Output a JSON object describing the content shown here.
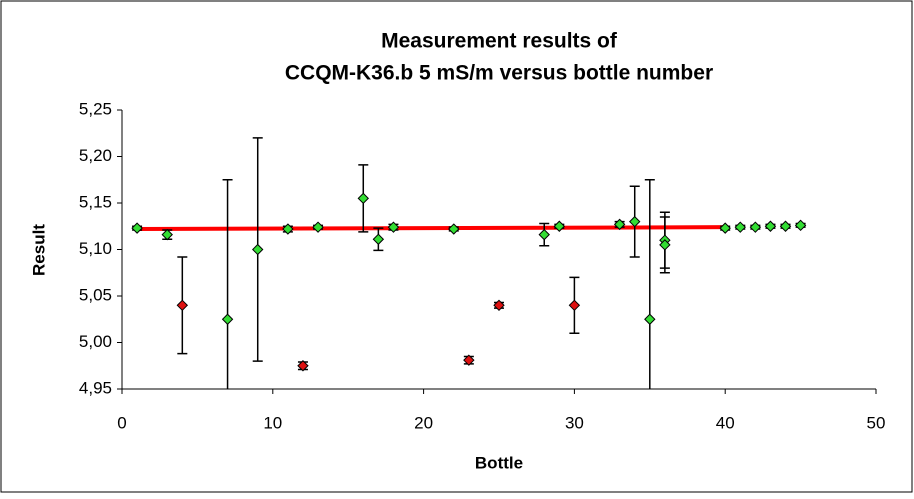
{
  "chart_data": {
    "type": "scatter",
    "title": [
      "Measurement results of",
      "CCQM-K36.b 5 mS/m versus bottle number"
    ],
    "xlabel": "Bottle",
    "ylabel": "Result",
    "xlim": [
      0,
      50
    ],
    "xticks": [
      0,
      10,
      20,
      30,
      40,
      50
    ],
    "ylim": [
      4.95,
      5.25
    ],
    "yticks": [
      {
        "value": 4.95,
        "label": "4,95"
      },
      {
        "value": 5.0,
        "label": "5,00"
      },
      {
        "value": 5.05,
        "label": "5,05"
      },
      {
        "value": 5.1,
        "label": "5,10"
      },
      {
        "value": 5.15,
        "label": "5,15"
      },
      {
        "value": 5.2,
        "label": "5,20"
      },
      {
        "value": 5.25,
        "label": "5,25"
      }
    ],
    "series": [
      {
        "kind": "line",
        "color": "#ff0000",
        "x": [
          1,
          40
        ],
        "values": [
          5.122,
          5.124
        ]
      },
      {
        "kind": "points",
        "color": "#33dd33",
        "x": [
          1,
          3,
          7,
          9,
          11,
          13,
          16,
          17,
          18,
          22,
          28,
          29,
          33,
          34,
          35,
          36,
          36,
          40,
          41,
          42,
          43,
          44,
          45
        ],
        "values": [
          5.123,
          5.116,
          5.025,
          5.1,
          5.122,
          5.124,
          5.155,
          5.111,
          5.124,
          5.122,
          5.116,
          5.125,
          5.127,
          5.13,
          5.025,
          5.11,
          5.105,
          5.123,
          5.124,
          5.124,
          5.125,
          5.125,
          5.126
        ],
        "errors": [
          0.002,
          0.005,
          0.15,
          0.12,
          0.003,
          0.002,
          0.036,
          0.012,
          0.003,
          0.002,
          0.012,
          0.002,
          0.003,
          0.038,
          0.15,
          0.03,
          0.03,
          0.002,
          0.002,
          0.002,
          0.002,
          0.002,
          0.002
        ]
      },
      {
        "kind": "points",
        "color": "#dd1111",
        "x": [
          4,
          12,
          23,
          25,
          30
        ],
        "values": [
          5.04,
          4.975,
          4.981,
          5.04,
          5.04
        ],
        "errors": [
          0.052,
          0.004,
          0.004,
          0.003,
          0.03
        ]
      }
    ]
  }
}
